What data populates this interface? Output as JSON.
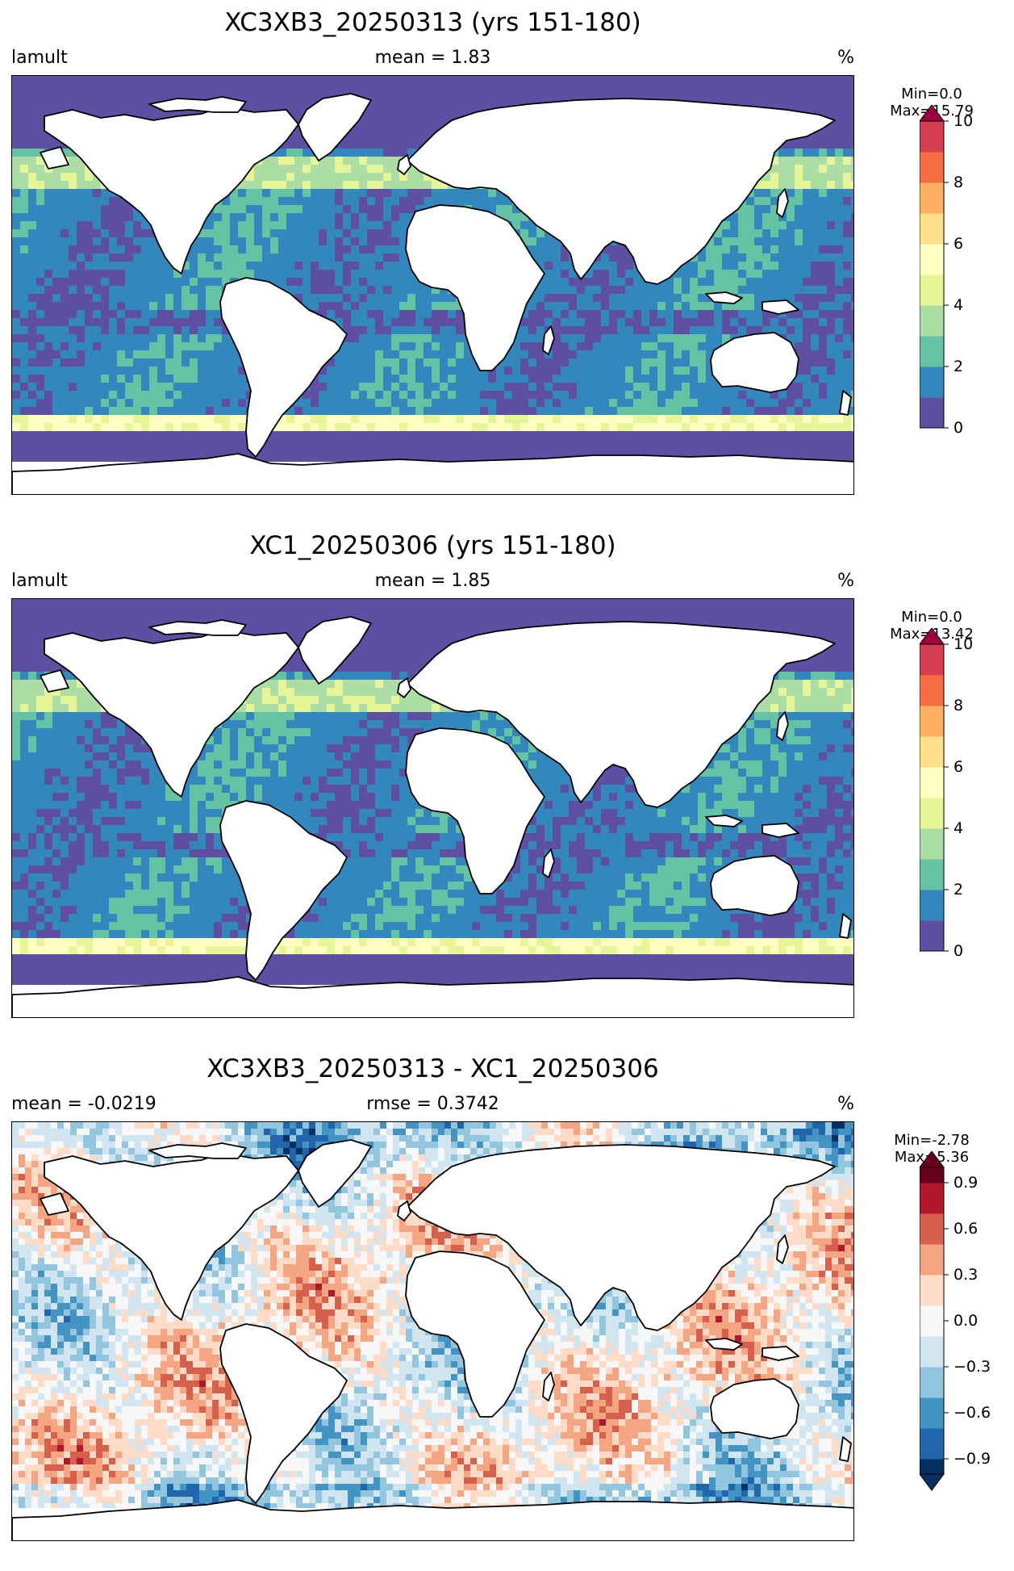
{
  "panels": [
    {
      "title": "XC3XB3_20250313 (yrs 151-180)",
      "left_label": "lamult",
      "center_label": "mean = 1.83",
      "right_label": "%",
      "min_label": "Min=0.0",
      "max_label": "Max=15.79",
      "colorbar": {
        "colors": [
          "#5e4fa2",
          "#3288bd",
          "#66c2a5",
          "#abdda4",
          "#e6f598",
          "#ffffbf",
          "#fee08b",
          "#fdae61",
          "#f46d43",
          "#d53e4f",
          "#9e0142"
        ],
        "ticks": [
          "0",
          "2",
          "4",
          "6",
          "8",
          "10"
        ]
      }
    },
    {
      "title": "XC1_20250306 (yrs 151-180)",
      "left_label": "lamult",
      "center_label": "mean = 1.85",
      "right_label": "%",
      "min_label": "Min=0.0",
      "max_label": "Max=13.42",
      "colorbar": {
        "colors": [
          "#5e4fa2",
          "#3288bd",
          "#66c2a5",
          "#abdda4",
          "#e6f598",
          "#ffffbf",
          "#fee08b",
          "#fdae61",
          "#f46d43",
          "#d53e4f",
          "#9e0142"
        ],
        "ticks": [
          "0",
          "2",
          "4",
          "6",
          "8",
          "10"
        ]
      }
    },
    {
      "title": "XC3XB3_20250313 - XC1_20250306",
      "left_label": "mean = -0.0219",
      "center_label": "rmse = 0.3742",
      "right_label": "%",
      "min_label": "Min=-2.78",
      "max_label": "Max=5.36",
      "colorbar": {
        "colors": [
          "#053061",
          "#2166ac",
          "#4393c3",
          "#92c5de",
          "#d1e5f0",
          "#f7f7f7",
          "#fddbc7",
          "#f4a582",
          "#d6604d",
          "#b2182b",
          "#67001f"
        ],
        "ticks": [
          "−0.9",
          "−0.6",
          "−0.3",
          "0.0",
          "0.3",
          "0.6",
          "0.9"
        ]
      }
    }
  ]
}
